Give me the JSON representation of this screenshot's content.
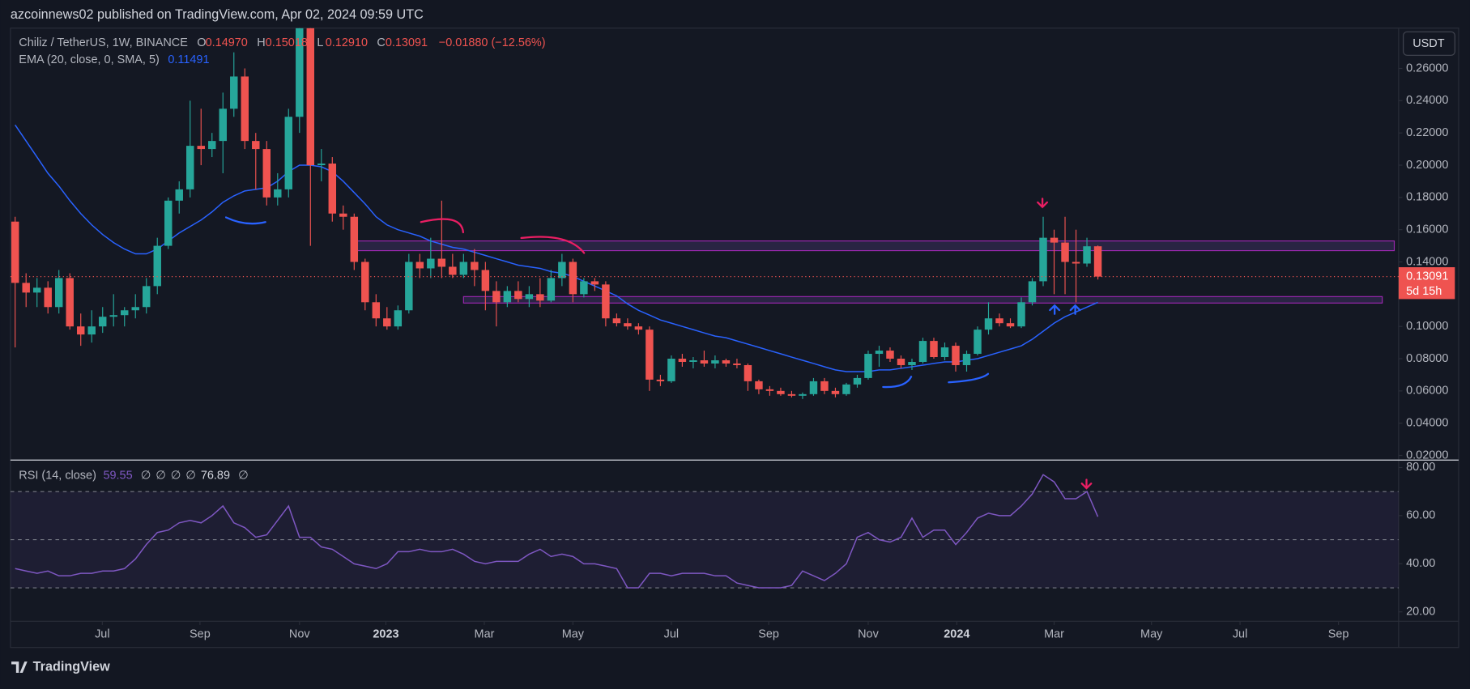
{
  "chart_data": {
    "type": "candlestick",
    "header": "azcoinnews02 published on TradingView.com, Apr 02, 2024 09:59 UTC",
    "title": "Chiliz / TetherUS, 1W, BINANCE",
    "legend_keys": [
      "O",
      "H",
      "L",
      "C"
    ],
    "legend_values": [
      "0.14970",
      "0.15018",
      "0.12910",
      "0.13091"
    ],
    "change": "−0.01880 (−12.56%)",
    "currency": "USDT",
    "countdown": "5d 15h",
    "last_label": "0.13091",
    "footer": "TradingView",
    "up_color": "#26a69a",
    "down_color": "#ef5350",
    "open": [
      0.165,
      0.127,
      0.121,
      0.124,
      0.112,
      0.13,
      0.1,
      0.095,
      0.1,
      0.106,
      0.107,
      0.11,
      0.112,
      0.125,
      0.15,
      0.178,
      0.185,
      0.212,
      0.21,
      0.215,
      0.235,
      0.255,
      0.215,
      0.21,
      0.18,
      0.185,
      0.23,
      0.285,
      0.2,
      0.201,
      0.17,
      0.168,
      0.14,
      0.115,
      0.105,
      0.1,
      0.11,
      0.14,
      0.136,
      0.142,
      0.137,
      0.132,
      0.14,
      0.135,
      0.122,
      0.115,
      0.122,
      0.117,
      0.12,
      0.116,
      0.13,
      0.14,
      0.12,
      0.128,
      0.126,
      0.105,
      0.102,
      0.1,
      0.098,
      0.067,
      0.066,
      0.08,
      0.078,
      0.079,
      0.077,
      0.079,
      0.077,
      0.076,
      0.066,
      0.061,
      0.06,
      0.058,
      0.057,
      0.058,
      0.066,
      0.06,
      0.058,
      0.064,
      0.068,
      0.083,
      0.085,
      0.08,
      0.076,
      0.078,
      0.091,
      0.081,
      0.088,
      0.076,
      0.083,
      0.098,
      0.105,
      0.102,
      0.1,
      0.115,
      0.128,
      0.155,
      0.152,
      0.14,
      0.139,
      0.1497
    ],
    "high": [
      0.168,
      0.133,
      0.13,
      0.128,
      0.135,
      0.133,
      0.108,
      0.11,
      0.112,
      0.12,
      0.112,
      0.12,
      0.13,
      0.155,
      0.18,
      0.19,
      0.24,
      0.235,
      0.22,
      0.245,
      0.27,
      0.26,
      0.22,
      0.215,
      0.195,
      0.235,
      0.29,
      0.29,
      0.21,
      0.205,
      0.175,
      0.17,
      0.142,
      0.12,
      0.112,
      0.113,
      0.145,
      0.145,
      0.155,
      0.178,
      0.145,
      0.145,
      0.148,
      0.14,
      0.128,
      0.125,
      0.128,
      0.125,
      0.13,
      0.135,
      0.145,
      0.142,
      0.13,
      0.13,
      0.128,
      0.108,
      0.105,
      0.102,
      0.1,
      0.07,
      0.082,
      0.083,
      0.081,
      0.085,
      0.082,
      0.08,
      0.08,
      0.077,
      0.067,
      0.063,
      0.062,
      0.06,
      0.059,
      0.068,
      0.068,
      0.062,
      0.065,
      0.07,
      0.085,
      0.088,
      0.087,
      0.082,
      0.08,
      0.093,
      0.093,
      0.09,
      0.09,
      0.085,
      0.1,
      0.115,
      0.108,
      0.105,
      0.118,
      0.13,
      0.168,
      0.16,
      0.168,
      0.16,
      0.155,
      0.15018
    ],
    "low": [
      0.087,
      0.112,
      0.112,
      0.108,
      0.108,
      0.098,
      0.088,
      0.09,
      0.096,
      0.1,
      0.1,
      0.105,
      0.108,
      0.12,
      0.148,
      0.17,
      0.18,
      0.2,
      0.205,
      0.195,
      0.23,
      0.21,
      0.185,
      0.175,
      0.175,
      0.18,
      0.22,
      0.15,
      0.19,
      0.165,
      0.16,
      0.135,
      0.11,
      0.1,
      0.098,
      0.098,
      0.108,
      0.13,
      0.13,
      0.13,
      0.13,
      0.13,
      0.125,
      0.11,
      0.1,
      0.112,
      0.115,
      0.112,
      0.112,
      0.115,
      0.125,
      0.115,
      0.118,
      0.122,
      0.1,
      0.1,
      0.098,
      0.095,
      0.06,
      0.063,
      0.065,
      0.075,
      0.074,
      0.075,
      0.074,
      0.075,
      0.074,
      0.06,
      0.058,
      0.057,
      0.057,
      0.056,
      0.055,
      0.057,
      0.058,
      0.056,
      0.057,
      0.062,
      0.067,
      0.075,
      0.078,
      0.074,
      0.073,
      0.077,
      0.08,
      0.079,
      0.072,
      0.072,
      0.082,
      0.095,
      0.1,
      0.099,
      0.099,
      0.113,
      0.125,
      0.12,
      0.12,
      0.115,
      0.137,
      0.1291
    ],
    "close": [
      0.127,
      0.121,
      0.124,
      0.112,
      0.13,
      0.1,
      0.095,
      0.1,
      0.106,
      0.107,
      0.11,
      0.112,
      0.125,
      0.15,
      0.178,
      0.185,
      0.212,
      0.21,
      0.215,
      0.235,
      0.255,
      0.215,
      0.21,
      0.18,
      0.185,
      0.23,
      0.285,
      0.2,
      0.201,
      0.17,
      0.168,
      0.14,
      0.115,
      0.105,
      0.1,
      0.11,
      0.14,
      0.136,
      0.142,
      0.137,
      0.132,
      0.14,
      0.135,
      0.122,
      0.115,
      0.122,
      0.117,
      0.12,
      0.116,
      0.13,
      0.14,
      0.12,
      0.128,
      0.126,
      0.105,
      0.102,
      0.1,
      0.098,
      0.067,
      0.066,
      0.08,
      0.078,
      0.079,
      0.077,
      0.079,
      0.077,
      0.076,
      0.066,
      0.061,
      0.06,
      0.058,
      0.057,
      0.058,
      0.066,
      0.06,
      0.058,
      0.064,
      0.068,
      0.083,
      0.085,
      0.08,
      0.076,
      0.078,
      0.091,
      0.081,
      0.087,
      0.076,
      0.083,
      0.098,
      0.105,
      0.102,
      0.1,
      0.115,
      0.128,
      0.155,
      0.152,
      0.14,
      0.139,
      0.1497,
      0.13091
    ],
    "ema": {
      "name": "EMA (20, close, 0, SMA, 5)",
      "color": "#2962ff",
      "values": [
        0.225,
        0.215,
        0.205,
        0.195,
        0.187,
        0.178,
        0.17,
        0.163,
        0.157,
        0.152,
        0.148,
        0.145,
        0.145,
        0.148,
        0.153,
        0.158,
        0.162,
        0.166,
        0.171,
        0.177,
        0.181,
        0.184,
        0.185,
        0.186,
        0.19,
        0.196,
        0.2,
        0.2,
        0.199,
        0.196,
        0.19,
        0.183,
        0.176,
        0.168,
        0.163,
        0.16,
        0.158,
        0.156,
        0.153,
        0.151,
        0.149,
        0.148,
        0.146,
        0.144,
        0.142,
        0.14,
        0.138,
        0.137,
        0.136,
        0.134,
        0.133,
        0.131,
        0.128,
        0.125,
        0.122,
        0.119,
        0.114,
        0.11,
        0.107,
        0.104,
        0.102,
        0.1,
        0.098,
        0.096,
        0.094,
        0.093,
        0.091,
        0.089,
        0.087,
        0.085,
        0.083,
        0.081,
        0.079,
        0.077,
        0.075,
        0.073,
        0.072,
        0.072,
        0.072,
        0.073,
        0.073,
        0.074,
        0.075,
        0.076,
        0.077,
        0.078,
        0.078,
        0.079,
        0.08,
        0.082,
        0.084,
        0.086,
        0.088,
        0.092,
        0.097,
        0.102,
        0.106,
        0.109,
        0.112,
        0.11491
      ]
    },
    "xlim": [
      -0.43,
      126.5
    ],
    "ylim": [
      0.0177,
      0.285
    ],
    "xticks": [
      {
        "value": 7.97,
        "label": "Jul"
      },
      {
        "value": 16.9,
        "label": "Sep"
      },
      {
        "value": 26,
        "label": "Nov"
      },
      {
        "value": 33.9,
        "label": "2023"
      },
      {
        "value": 42.9,
        "label": "Mar"
      },
      {
        "value": 51,
        "label": "May"
      },
      {
        "value": 60,
        "label": "Jul"
      },
      {
        "value": 68.9,
        "label": "Sep"
      },
      {
        "value": 78,
        "label": "Nov"
      },
      {
        "value": 86.1,
        "label": "2024"
      },
      {
        "value": 95,
        "label": "Mar"
      },
      {
        "value": 103.9,
        "label": "May"
      },
      {
        "value": 112,
        "label": "Jul"
      },
      {
        "value": 121,
        "label": "Sep"
      }
    ],
    "yticks": [
      {
        "value": 0.26,
        "label": "0.26000"
      },
      {
        "value": 0.24,
        "label": "0.24000"
      },
      {
        "value": 0.22,
        "label": "0.22000"
      },
      {
        "value": 0.2,
        "label": "0.20000"
      },
      {
        "value": 0.18,
        "label": "0.18000"
      },
      {
        "value": 0.16,
        "label": "0.16000"
      },
      {
        "value": 0.14,
        "label": "0.14000"
      },
      {
        "value": 0.1,
        "label": "0.10000"
      },
      {
        "value": 0.08,
        "label": "0.08000"
      },
      {
        "value": 0.06,
        "label": "0.06000"
      },
      {
        "value": 0.04,
        "label": "0.04000"
      },
      {
        "value": 0.02,
        "label": "0.02000"
      }
    ],
    "zones": [
      {
        "x": [
          31,
          126.1
        ],
        "y": [
          0.147,
          0.153
        ]
      },
      {
        "x": [
          41,
          125
        ],
        "y": [
          0.1145,
          0.1185
        ]
      }
    ],
    "rsi": {
      "name": "RSI (14, close)",
      "color": "#7e57c2",
      "values": [
        38,
        37,
        36,
        37,
        35,
        35,
        36,
        36,
        37,
        37,
        38,
        42,
        48,
        53,
        54,
        57,
        58,
        57,
        60,
        64,
        57,
        55,
        51,
        52,
        58,
        64,
        51,
        51,
        47,
        46,
        43,
        40,
        39,
        38,
        40,
        45,
        45,
        46,
        45,
        45,
        46,
        44,
        41,
        40,
        41,
        41,
        41,
        44,
        46,
        43,
        44,
        43,
        40,
        40,
        39,
        38,
        30,
        30,
        36,
        36,
        35,
        36,
        36,
        36,
        35,
        35,
        32,
        31,
        30,
        30,
        30,
        31,
        37,
        35,
        33,
        36,
        40,
        51,
        53,
        50,
        49,
        51,
        59,
        51,
        54,
        54,
        48,
        53,
        59,
        61,
        60,
        60,
        64,
        69,
        77,
        74,
        67,
        67,
        70,
        59.55
      ],
      "legend": [
        "∅",
        "∅",
        "∅",
        "∅",
        76.89,
        "∅"
      ],
      "ylim": [
        16.5,
        82.7
      ],
      "yticks": [
        {
          "value": 80,
          "label": "80.00"
        },
        {
          "value": 60,
          "label": "60.00"
        },
        {
          "value": 40,
          "label": "40.00"
        },
        {
          "value": 20,
          "label": "20.00"
        }
      ],
      "levels": [
        70,
        50,
        30
      ]
    }
  }
}
